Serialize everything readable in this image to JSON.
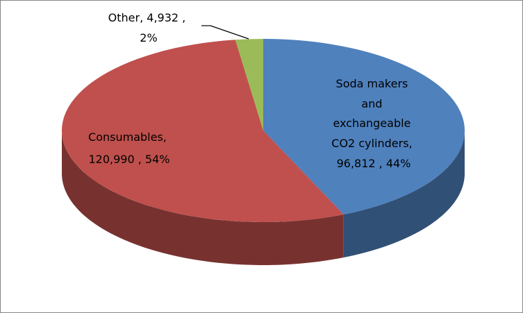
{
  "chart_data": {
    "type": "pie",
    "style": "3d",
    "title": "",
    "slices": [
      {
        "key": "soda",
        "name": "Soda makers and exchangeable CO2 cylinders",
        "value": 96812,
        "percent": 44,
        "color": "#4F81BD",
        "label_lines": [
          "Soda makers",
          "and",
          "exchangeable",
          "CO2 cylinders,",
          "96,812 , 44%"
        ]
      },
      {
        "key": "consumables",
        "name": "Consumables",
        "value": 120990,
        "percent": 54,
        "color": "#C0504D",
        "label_lines": [
          "Consumables,",
          "120,990 , 54%"
        ]
      },
      {
        "key": "other",
        "name": "Other",
        "value": 4932,
        "percent": 2,
        "color": "#9BBB59",
        "label_lines": [
          "Other, 4,932 ,",
          "2%"
        ]
      }
    ],
    "legend": "none"
  }
}
